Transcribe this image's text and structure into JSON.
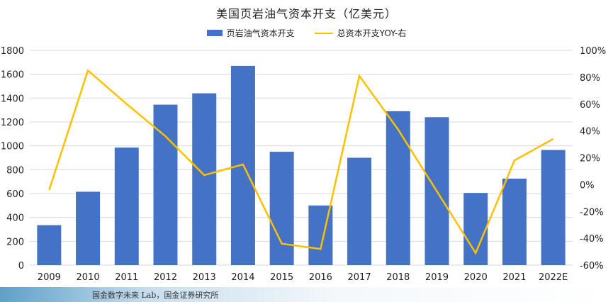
{
  "title": "美国页岩油气资本开支（亿美元）",
  "legend": {
    "bar_label": "页岩油气资本开支",
    "line_label": "总资本开支YOY-右"
  },
  "source": "国金数字未来 Lab，国金证券研究所",
  "colors": {
    "bar": "#4472C4",
    "line": "#FFC000",
    "grid": "#d9d9d9"
  },
  "chart_data": {
    "type": "bar",
    "title": "美国页岩油气资本开支（亿美元）",
    "categories": [
      "2009",
      "2010",
      "2011",
      "2012",
      "2013",
      "2014",
      "2015",
      "2016",
      "2017",
      "2018",
      "2019",
      "2020",
      "2021",
      "2022E"
    ],
    "series": [
      {
        "name": "页岩油气资本开支",
        "type": "bar",
        "axis": "left",
        "values": [
          335,
          615,
          985,
          1345,
          1440,
          1670,
          950,
          500,
          900,
          1290,
          1240,
          605,
          725,
          965
        ]
      },
      {
        "name": "总资本开支YOY-右",
        "type": "line",
        "axis": "right",
        "values": [
          -4,
          85,
          60,
          36,
          7,
          15,
          -44,
          -48,
          81,
          41,
          -5,
          -51,
          18,
          34
        ]
      }
    ],
    "left_axis": {
      "ylim": [
        0,
        1800
      ],
      "ticks": [
        "0",
        "200",
        "400",
        "600",
        "800",
        "1000",
        "1200",
        "1400",
        "1600",
        "1800"
      ]
    },
    "right_axis": {
      "ylim": [
        -60,
        100
      ],
      "ticks": [
        "-60%",
        "-40%",
        "-20%",
        "0%",
        "20%",
        "40%",
        "60%",
        "80%",
        "100%"
      ]
    },
    "grid": true,
    "legend_position": "top-center"
  }
}
